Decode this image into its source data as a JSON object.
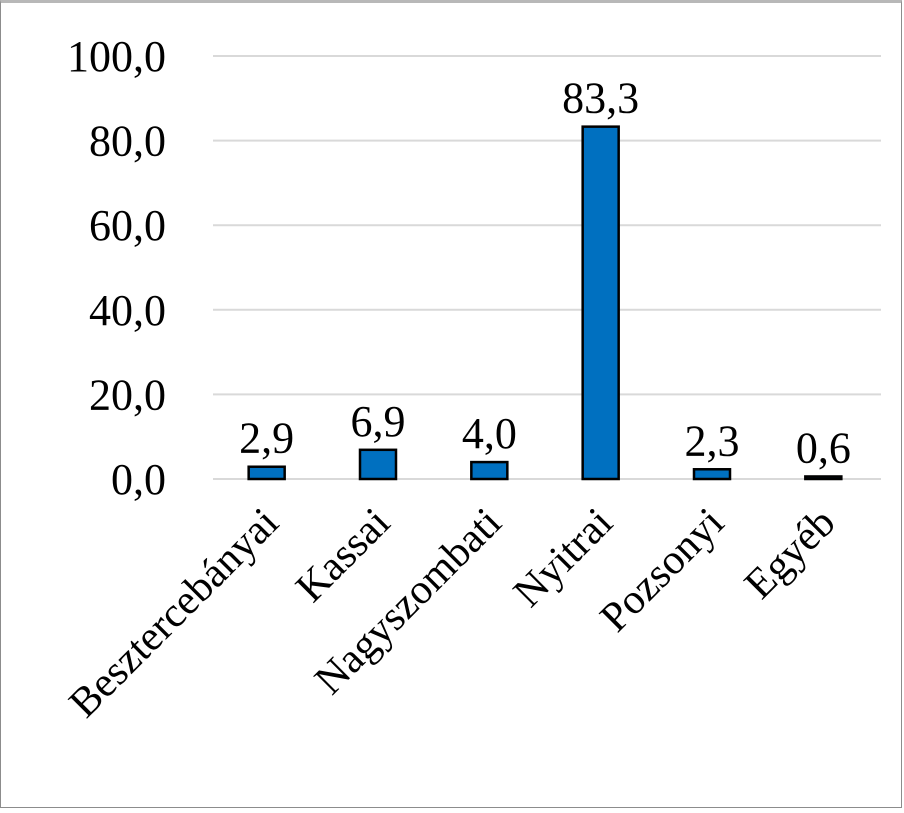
{
  "chart_data": {
    "type": "bar",
    "title": "",
    "xlabel": "",
    "ylabel": "",
    "categories": [
      "Besztercebányai",
      "Kassai",
      "Nagyszombati",
      "Nyitrai",
      "Pozsonyi",
      "Egyéb"
    ],
    "series": [
      {
        "values": [
          2.9,
          6.9,
          4.0,
          83.3,
          2.3,
          0.6
        ]
      }
    ],
    "data_labels": [
      "2,9",
      "6,9",
      "4,0",
      "83,3",
      "2,3",
      "0,6"
    ],
    "y_ticks": [
      0,
      20,
      40,
      60,
      80,
      100
    ],
    "y_tick_labels": [
      "0,0",
      "20,0",
      "40,0",
      "60,0",
      "80,0",
      "100,0"
    ],
    "ylim": [
      0,
      100
    ],
    "grid": true,
    "legend": "none",
    "bar_color": "#0070c0",
    "category_label_rotation": "-45"
  }
}
